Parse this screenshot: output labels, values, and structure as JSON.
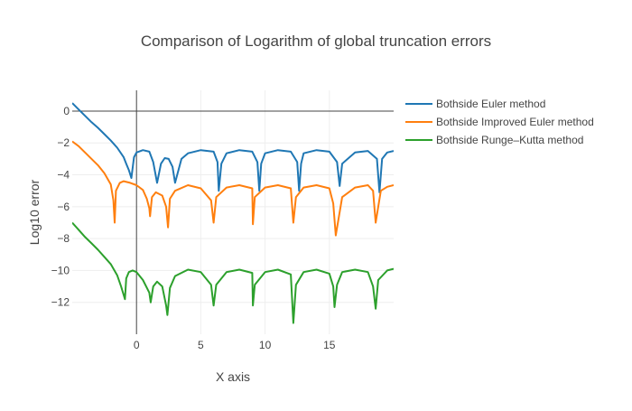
{
  "chart_data": {
    "type": "line",
    "title": "Comparison of Logarithm of global truncation errors",
    "xlabel": "X axis",
    "ylabel": "Log10 error",
    "xlim": [
      -5,
      20
    ],
    "ylim": [
      -14,
      1.3
    ],
    "xticks": [
      0,
      5,
      10,
      15
    ],
    "yticks": [
      0,
      -2,
      -4,
      -6,
      -8,
      -10,
      -12
    ],
    "grid": true,
    "legend_position": "top-right",
    "series": [
      {
        "name": "Bothside Euler method",
        "color": "#1f77b4",
        "x": [
          -5,
          -4.5,
          -4,
          -3.5,
          -3,
          -2.5,
          -2,
          -1.5,
          -1,
          -0.8,
          -0.6,
          -0.4,
          -0.2,
          0,
          0.5,
          1,
          1.3,
          1.6,
          1.9,
          2.2,
          2.5,
          2.8,
          3,
          3.5,
          4,
          5,
          6,
          6.3,
          6.4,
          6.6,
          7,
          8,
          9,
          9.4,
          9.55,
          9.7,
          10,
          11,
          12,
          12.5,
          12.65,
          12.8,
          13,
          14,
          15,
          15.6,
          15.8,
          16,
          17,
          18,
          18.7,
          18.9,
          19.1,
          19.5,
          20
        ],
        "y": [
          0.5,
          0.1,
          -0.3,
          -0.7,
          -1.05,
          -1.45,
          -1.85,
          -2.3,
          -2.9,
          -3.3,
          -3.7,
          -4.2,
          -2.9,
          -2.6,
          -2.45,
          -2.55,
          -3.2,
          -4.5,
          -3.3,
          -2.95,
          -3.0,
          -3.5,
          -4.5,
          -3.0,
          -2.65,
          -2.45,
          -2.55,
          -3.2,
          -5.0,
          -3.3,
          -2.65,
          -2.45,
          -2.55,
          -3.2,
          -5.0,
          -3.3,
          -2.65,
          -2.45,
          -2.55,
          -3.2,
          -5.0,
          -3.3,
          -2.65,
          -2.45,
          -2.55,
          -3.2,
          -4.7,
          -3.3,
          -2.6,
          -2.5,
          -3.0,
          -5.1,
          -3.0,
          -2.6,
          -2.5
        ]
      },
      {
        "name": "Bothside Improved Euler method",
        "color": "#ff7f0e",
        "x": [
          -5,
          -4.5,
          -4,
          -3.5,
          -3,
          -2.5,
          -2,
          -1.8,
          -1.7,
          -1.6,
          -1.3,
          -1,
          -0.5,
          0,
          0.5,
          0.8,
          1,
          1.05,
          1.2,
          1.5,
          2,
          2.3,
          2.45,
          2.6,
          3,
          4,
          5,
          5.8,
          6,
          6.2,
          7,
          8,
          9,
          9.05,
          9.2,
          10,
          11,
          12,
          12.2,
          12.4,
          13,
          14,
          15,
          15.3,
          15.5,
          16,
          17,
          18,
          18.4,
          18.6,
          19,
          19.5,
          20
        ],
        "y": [
          -1.9,
          -2.2,
          -2.6,
          -3.0,
          -3.4,
          -3.9,
          -4.6,
          -5.6,
          -7.0,
          -5.0,
          -4.5,
          -4.4,
          -4.5,
          -4.65,
          -4.95,
          -5.5,
          -6.1,
          -6.6,
          -5.4,
          -5.1,
          -5.3,
          -6.0,
          -7.3,
          -5.5,
          -5.0,
          -4.65,
          -4.85,
          -5.6,
          -7.0,
          -5.4,
          -4.8,
          -4.65,
          -4.85,
          -7.1,
          -5.4,
          -4.8,
          -4.65,
          -4.85,
          -7.0,
          -5.4,
          -4.8,
          -4.65,
          -4.85,
          -5.8,
          -7.8,
          -5.4,
          -4.8,
          -4.65,
          -5.0,
          -7.0,
          -5.0,
          -4.75,
          -4.65
        ]
      },
      {
        "name": "Bothside Runge–Kutta method",
        "color": "#2ca02c",
        "x": [
          -5,
          -4.5,
          -4,
          -3.5,
          -3,
          -2.5,
          -2,
          -1.5,
          -1.2,
          -0.9,
          -0.8,
          -0.6,
          -0.3,
          0,
          0.5,
          1,
          1.1,
          1.3,
          1.6,
          2,
          2.3,
          2.4,
          2.6,
          3,
          4,
          5,
          5.8,
          6,
          6.2,
          7,
          8,
          9,
          9.05,
          9.2,
          10,
          11,
          12,
          12.2,
          12.4,
          13,
          14,
          15,
          15.3,
          15.4,
          15.6,
          16,
          17,
          18,
          18.4,
          18.6,
          18.8,
          19.5,
          20
        ],
        "y": [
          -7.0,
          -7.45,
          -7.9,
          -8.3,
          -8.7,
          -9.15,
          -9.6,
          -10.3,
          -11.0,
          -11.8,
          -10.5,
          -10.1,
          -10.0,
          -10.1,
          -10.6,
          -11.4,
          -12.0,
          -11.0,
          -10.7,
          -11.0,
          -12.2,
          -12.8,
          -11.1,
          -10.35,
          -9.95,
          -10.1,
          -10.9,
          -12.2,
          -10.9,
          -10.1,
          -9.95,
          -10.15,
          -12.2,
          -10.9,
          -10.1,
          -9.95,
          -10.25,
          -13.3,
          -10.9,
          -10.1,
          -9.95,
          -10.2,
          -11.0,
          -12.3,
          -10.9,
          -10.1,
          -9.95,
          -10.1,
          -11.0,
          -12.4,
          -10.6,
          -10.0,
          -9.9
        ]
      }
    ]
  }
}
